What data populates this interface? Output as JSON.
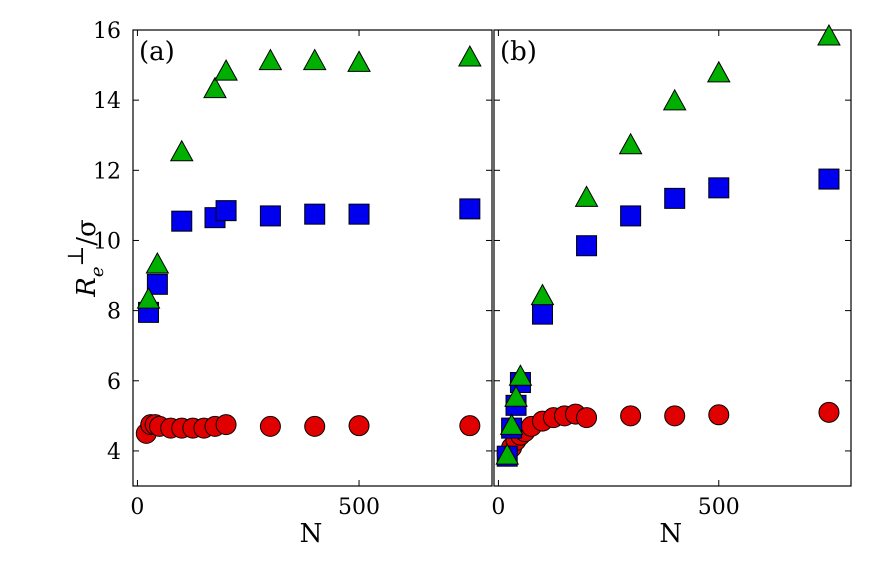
{
  "chart_data": {
    "type": "scatter",
    "ylabel": "Re⊥/σ",
    "ylabel_parts": {
      "R": "R",
      "e": "e",
      "perp": "⊥",
      "sigma": "/σ"
    },
    "ylim": [
      3,
      16
    ],
    "yticks": [
      4,
      6,
      8,
      10,
      12,
      14,
      16
    ],
    "yticks_text": [
      "4",
      "6",
      "8",
      "10",
      "12",
      "14",
      "16"
    ],
    "colors": {
      "circle": "#e00000",
      "square": "#0000ee",
      "triangle": "#00b000"
    },
    "panels": [
      {
        "label": "(a)",
        "xlabel": "N",
        "xlim": [
          -10,
          800
        ],
        "xticks": [
          0,
          500
        ],
        "xticks_text": [
          "0",
          "500"
        ],
        "series": [
          {
            "name": "triangles",
            "marker": "triangle",
            "x": [
              25,
              45,
              100,
              175,
              200,
              300,
              400,
              500,
              750
            ],
            "y": [
              8.3,
              9.3,
              12.5,
              14.3,
              14.8,
              15.1,
              15.1,
              15.05,
              15.2
            ]
          },
          {
            "name": "squares",
            "marker": "square",
            "x": [
              25,
              45,
              100,
              175,
              200,
              300,
              400,
              500,
              750
            ],
            "y": [
              7.95,
              8.75,
              10.55,
              10.65,
              10.85,
              10.7,
              10.75,
              10.75,
              10.9
            ]
          },
          {
            "name": "circles",
            "marker": "circle",
            "x": [
              20,
              30,
              40,
              50,
              75,
              100,
              125,
              150,
              175,
              200,
              300,
              400,
              500,
              750
            ],
            "y": [
              4.5,
              4.75,
              4.75,
              4.7,
              4.65,
              4.65,
              4.65,
              4.65,
              4.7,
              4.75,
              4.7,
              4.7,
              4.72,
              4.72
            ]
          }
        ]
      },
      {
        "label": "(b)",
        "xlabel": "N",
        "xlim": [
          -10,
          800
        ],
        "xticks": [
          0,
          500
        ],
        "xticks_text": [
          "0",
          "500"
        ],
        "series": [
          {
            "name": "triangles",
            "marker": "triangle",
            "x": [
              20,
              30,
              40,
              50,
              100,
              200,
              300,
              400,
              500,
              750
            ],
            "y": [
              3.85,
              4.7,
              5.5,
              6.1,
              8.4,
              11.2,
              12.7,
              13.95,
              14.75,
              15.8
            ]
          },
          {
            "name": "squares",
            "marker": "square",
            "x": [
              20,
              30,
              40,
              50,
              100,
              200,
              300,
              400,
              500,
              750
            ],
            "y": [
              3.85,
              4.65,
              5.3,
              5.95,
              7.9,
              9.85,
              10.7,
              11.2,
              11.5,
              11.75
            ]
          },
          {
            "name": "circles",
            "marker": "circle",
            "x": [
              20,
              30,
              40,
              50,
              60,
              75,
              100,
              125,
              150,
              175,
              200,
              300,
              400,
              500,
              750
            ],
            "y": [
              3.9,
              4.1,
              4.3,
              4.45,
              4.55,
              4.7,
              4.85,
              4.95,
              5.0,
              5.05,
              4.95,
              5.0,
              5.0,
              5.03,
              5.1
            ]
          }
        ]
      }
    ]
  }
}
